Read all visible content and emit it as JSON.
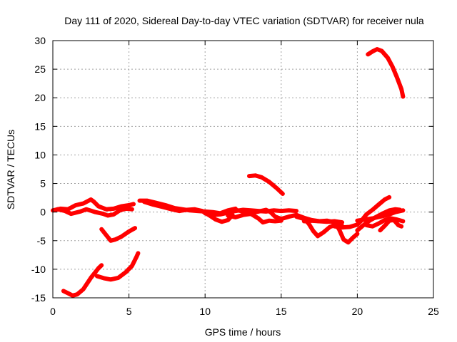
{
  "chart_data": {
    "type": "line",
    "title": "Day 111 of 2020, Sidereal Day-to-day VTEC variation (SDTVAR) for receiver nula",
    "xlabel": "GPS time / hours",
    "ylabel": "SDTVAR / TECUs",
    "xlim": [
      0,
      25
    ],
    "ylim": [
      -15,
      30
    ],
    "xticks": [
      0,
      5,
      10,
      15,
      20,
      25
    ],
    "yticks": [
      -15,
      -10,
      -5,
      0,
      5,
      10,
      15,
      20,
      25,
      30
    ],
    "grid": true,
    "color": "#ff0000",
    "series": [
      {
        "name": "trace-1",
        "points": [
          [
            0,
            0.3
          ],
          [
            0.5,
            0.6
          ],
          [
            1,
            0.5
          ],
          [
            1.5,
            1.2
          ],
          [
            2,
            1.5
          ],
          [
            2.5,
            2.2
          ],
          [
            2.7,
            1.8
          ],
          [
            3,
            1
          ],
          [
            3.5,
            0.5
          ],
          [
            4,
            0.6
          ],
          [
            4.5,
            1
          ],
          [
            5,
            1.2
          ],
          [
            5.3,
            1.4
          ]
        ]
      },
      {
        "name": "trace-2",
        "points": [
          [
            0.3,
            0.5
          ],
          [
            0.8,
            0.2
          ],
          [
            1.2,
            -0.3
          ],
          [
            1.8,
            0.1
          ],
          [
            2.2,
            0.5
          ],
          [
            2.8,
            0
          ],
          [
            3.3,
            -0.3
          ],
          [
            3.6,
            -0.6
          ],
          [
            4,
            -0.4
          ],
          [
            4.4,
            0.3
          ],
          [
            4.8,
            0.6
          ],
          [
            5.2,
            0.5
          ]
        ]
      },
      {
        "name": "trace-3",
        "points": [
          [
            3.2,
            -3
          ],
          [
            3.5,
            -4
          ],
          [
            3.8,
            -5
          ],
          [
            4.1,
            -4.8
          ],
          [
            4.5,
            -4.3
          ],
          [
            5,
            -3.4
          ],
          [
            5.4,
            -2.8
          ]
        ]
      },
      {
        "name": "trace-4",
        "points": [
          [
            0.7,
            -13.8
          ],
          [
            1,
            -14.2
          ],
          [
            1.3,
            -14.6
          ],
          [
            1.6,
            -14.4
          ],
          [
            2,
            -13.5
          ],
          [
            2.5,
            -11.5
          ],
          [
            3,
            -9.8
          ],
          [
            3.2,
            -9.3
          ]
        ]
      },
      {
        "name": "trace-5",
        "points": [
          [
            2.9,
            -11.2
          ],
          [
            3.4,
            -11.6
          ],
          [
            3.8,
            -11.8
          ],
          [
            4.3,
            -11.5
          ],
          [
            4.8,
            -10.5
          ],
          [
            5.2,
            -9.4
          ],
          [
            5.5,
            -7.8
          ],
          [
            5.6,
            -7.2
          ]
        ]
      },
      {
        "name": "trace-6",
        "points": [
          [
            5.7,
            2
          ],
          [
            6.2,
            2
          ],
          [
            6.8,
            1.6
          ],
          [
            7.4,
            1.2
          ],
          [
            8,
            0.7
          ],
          [
            8.5,
            0.5
          ],
          [
            9,
            0.3
          ],
          [
            9.5,
            0.2
          ],
          [
            10,
            0.1
          ],
          [
            10.5,
            0
          ],
          [
            11,
            -0.2
          ],
          [
            11.5,
            0.3
          ],
          [
            12,
            0.6
          ]
        ]
      },
      {
        "name": "trace-7",
        "points": [
          [
            6,
            1.8
          ],
          [
            6.6,
            1.3
          ],
          [
            7.2,
            0.9
          ],
          [
            7.8,
            0.5
          ],
          [
            8.3,
            0.2
          ],
          [
            8.8,
            0.4
          ],
          [
            9.3,
            0.5
          ],
          [
            9.8,
            0.2
          ],
          [
            10.3,
            -0.6
          ],
          [
            10.7,
            -1.3
          ],
          [
            11.1,
            -1.7
          ],
          [
            11.5,
            -1.4
          ],
          [
            11.8,
            -0.5
          ]
        ]
      },
      {
        "name": "trace-8",
        "points": [
          [
            10,
            -0.2
          ],
          [
            10.5,
            -0.5
          ],
          [
            11,
            -0.4
          ],
          [
            11.5,
            -0.1
          ],
          [
            12,
            0.2
          ],
          [
            12.5,
            0.4
          ],
          [
            13,
            0.3
          ],
          [
            13.5,
            0.2
          ],
          [
            14,
            0.1
          ],
          [
            14.5,
            0.3
          ],
          [
            15,
            0.2
          ],
          [
            15.5,
            0.3
          ],
          [
            16,
            0.2
          ]
        ]
      },
      {
        "name": "trace-9",
        "points": [
          [
            12,
            0.4
          ],
          [
            12.5,
            0.1
          ],
          [
            13,
            -0.2
          ],
          [
            13.5,
            0.1
          ],
          [
            14,
            0.4
          ],
          [
            14.3,
            0
          ],
          [
            14.6,
            -0.8
          ],
          [
            15,
            -1.2
          ],
          [
            15.5,
            -0.8
          ],
          [
            16,
            -0.5
          ],
          [
            16.5,
            -1
          ],
          [
            17,
            -1.4
          ],
          [
            17.5,
            -1.6
          ],
          [
            18,
            -1.7
          ],
          [
            18.5,
            -1.6
          ],
          [
            19,
            -1.8
          ]
        ]
      },
      {
        "name": "trace-10",
        "points": [
          [
            11.5,
            -0.6
          ],
          [
            12,
            -0.9
          ],
          [
            12.5,
            -0.5
          ],
          [
            13,
            -0.3
          ],
          [
            13.5,
            -1.1
          ],
          [
            13.8,
            -1.8
          ],
          [
            14.2,
            -1.5
          ],
          [
            14.6,
            -1.6
          ],
          [
            15,
            -1.5
          ]
        ]
      },
      {
        "name": "trace-11",
        "points": [
          [
            12.9,
            6.3
          ],
          [
            13.3,
            6.4
          ],
          [
            13.7,
            6.1
          ],
          [
            14.2,
            5.3
          ],
          [
            14.7,
            4.2
          ],
          [
            15.1,
            3.2
          ]
        ]
      },
      {
        "name": "trace-12",
        "points": [
          [
            16,
            -0.8
          ],
          [
            16.5,
            -1.2
          ],
          [
            16.8,
            -2
          ],
          [
            17.1,
            -3.3
          ],
          [
            17.4,
            -4.2
          ],
          [
            17.8,
            -3.5
          ],
          [
            18.2,
            -2.6
          ],
          [
            18.6,
            -2.2
          ],
          [
            19,
            -2.4
          ]
        ]
      },
      {
        "name": "trace-13",
        "points": [
          [
            16.5,
            -1.6
          ],
          [
            17,
            -1.5
          ],
          [
            17.5,
            -1.6
          ],
          [
            18,
            -1.5
          ],
          [
            18.5,
            -1.8
          ],
          [
            18.8,
            -3
          ],
          [
            19.1,
            -4.8
          ],
          [
            19.4,
            -5.3
          ],
          [
            19.7,
            -4.5
          ],
          [
            20,
            -3.8
          ]
        ]
      },
      {
        "name": "trace-14",
        "points": [
          [
            18.5,
            -2.5
          ],
          [
            19,
            -2.7
          ],
          [
            19.5,
            -2.6
          ],
          [
            20,
            -2.2
          ],
          [
            20.3,
            -1.4
          ],
          [
            20.6,
            -0.4
          ],
          [
            21,
            0.4
          ],
          [
            21.4,
            1.3
          ],
          [
            21.8,
            2.2
          ],
          [
            22.1,
            2.6
          ]
        ]
      },
      {
        "name": "trace-15",
        "points": [
          [
            20,
            -1.5
          ],
          [
            20.5,
            -1.3
          ],
          [
            21,
            -1.1
          ],
          [
            21.5,
            -0.8
          ],
          [
            22,
            -0.5
          ],
          [
            22.5,
            0
          ],
          [
            23,
            0.3
          ]
        ]
      },
      {
        "name": "trace-16",
        "points": [
          [
            20,
            -3.2
          ],
          [
            20.4,
            -2.3
          ],
          [
            20.8,
            -1.5
          ],
          [
            21.2,
            -0.9
          ],
          [
            21.7,
            -0.2
          ],
          [
            22.1,
            0.3
          ],
          [
            22.5,
            0.5
          ],
          [
            22.8,
            0.4
          ]
        ]
      },
      {
        "name": "trace-17",
        "points": [
          [
            21.5,
            -3.2
          ],
          [
            21.8,
            -2.4
          ],
          [
            22.1,
            -1.5
          ],
          [
            22.4,
            -1.4
          ],
          [
            22.7,
            -2.3
          ],
          [
            22.9,
            -2.5
          ]
        ]
      },
      {
        "name": "trace-18",
        "points": [
          [
            20.6,
            -2.3
          ],
          [
            21,
            -2.5
          ],
          [
            21.4,
            -2
          ],
          [
            21.8,
            -1.4
          ],
          [
            22.2,
            -1.1
          ],
          [
            22.6,
            -1.3
          ],
          [
            23,
            -1.6
          ]
        ]
      },
      {
        "name": "trace-19",
        "points": [
          [
            20.7,
            27.6
          ],
          [
            21,
            28.1
          ],
          [
            21.3,
            28.5
          ],
          [
            21.6,
            28.2
          ],
          [
            22,
            27
          ],
          [
            22.3,
            25.5
          ],
          [
            22.6,
            23.6
          ],
          [
            22.9,
            21.5
          ],
          [
            23,
            20.2
          ]
        ]
      }
    ]
  }
}
